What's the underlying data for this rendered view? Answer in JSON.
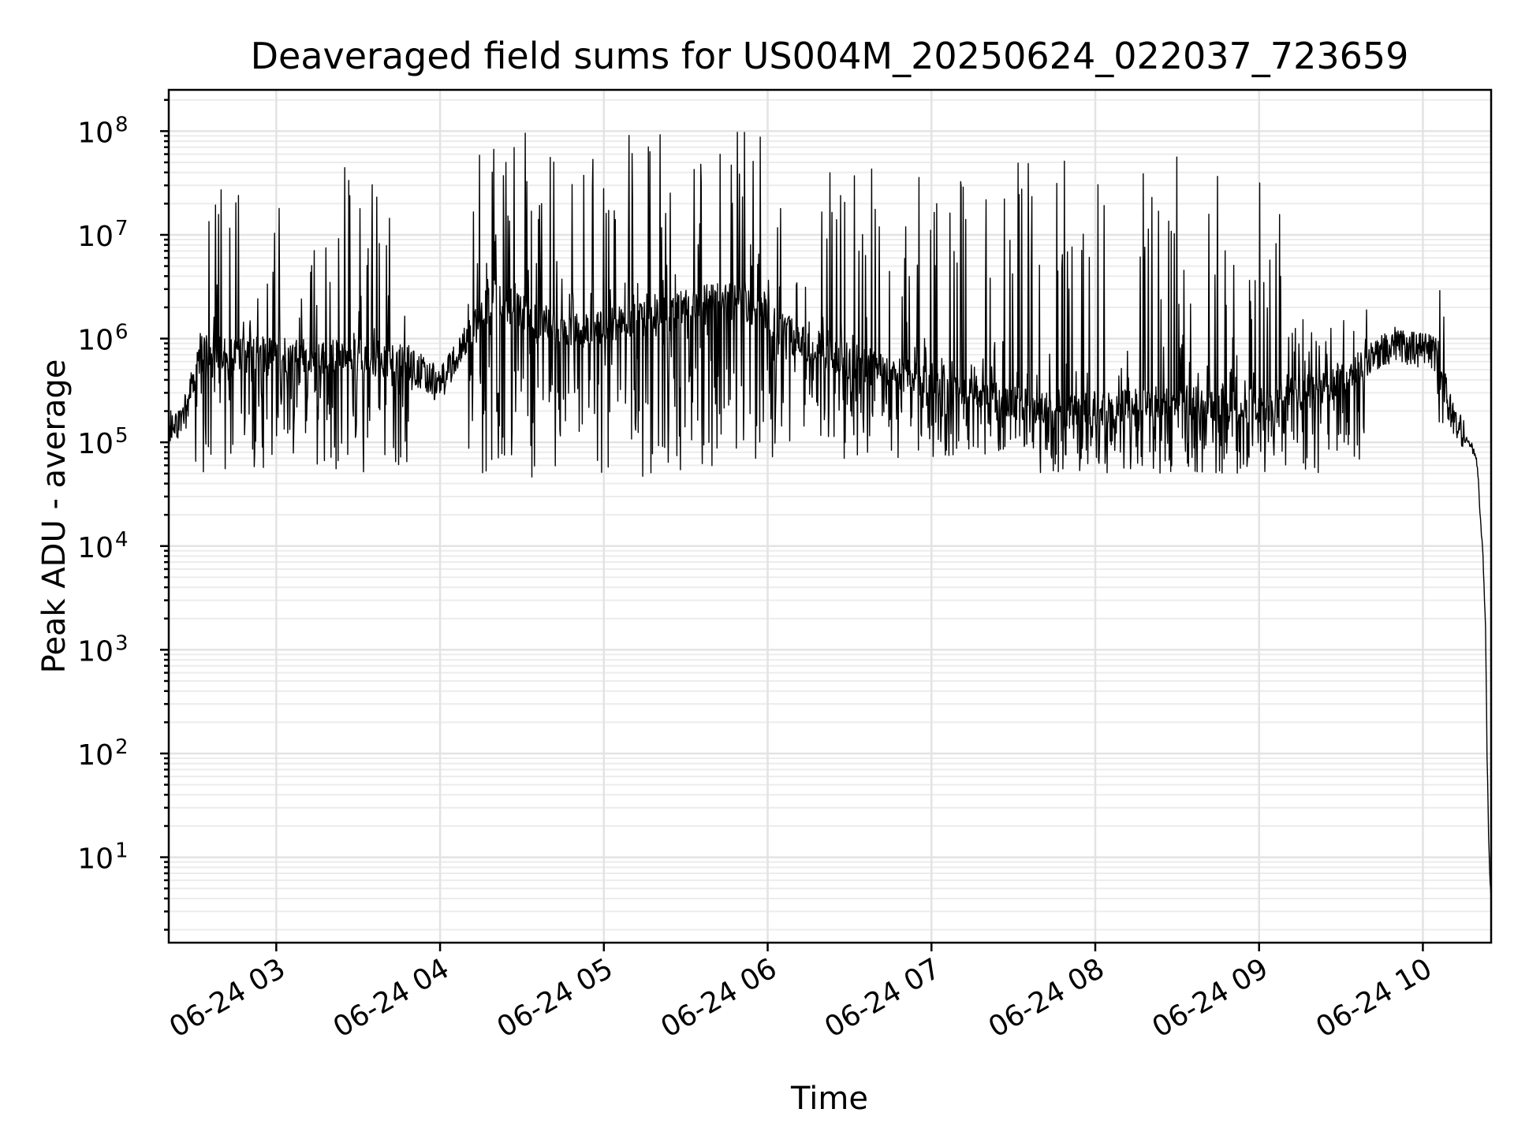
{
  "chart_data": {
    "type": "line",
    "title": "Deaveraged field sums for US004M_20250624_022037_723659",
    "xlabel": "Time",
    "ylabel": "Peak ADU - average",
    "yscale": "log",
    "ylim": [
      1.5,
      250000000
    ],
    "xlim": [
      "2025-06-24 02:20:37",
      "2025-06-24 10:25:00"
    ],
    "grid": true,
    "x_ticks": [
      {
        "value": "2025-06-24 03:00",
        "label": "06-24 03"
      },
      {
        "value": "2025-06-24 04:00",
        "label": "06-24 04"
      },
      {
        "value": "2025-06-24 05:00",
        "label": "06-24 05"
      },
      {
        "value": "2025-06-24 06:00",
        "label": "06-24 06"
      },
      {
        "value": "2025-06-24 07:00",
        "label": "06-24 07"
      },
      {
        "value": "2025-06-24 08:00",
        "label": "06-24 08"
      },
      {
        "value": "2025-06-24 09:00",
        "label": "06-24 09"
      },
      {
        "value": "2025-06-24 10:00",
        "label": "06-24 10"
      }
    ],
    "y_ticks": [
      {
        "value": 10,
        "base": "10",
        "exp": "1"
      },
      {
        "value": 100,
        "base": "10",
        "exp": "2"
      },
      {
        "value": 1000,
        "base": "10",
        "exp": "3"
      },
      {
        "value": 10000,
        "base": "10",
        "exp": "4"
      },
      {
        "value": 100000,
        "base": "10",
        "exp": "5"
      },
      {
        "value": 1000000,
        "base": "10",
        "exp": "6"
      },
      {
        "value": 10000000,
        "base": "10",
        "exp": "7"
      },
      {
        "value": 100000000,
        "base": "10",
        "exp": "8"
      }
    ],
    "series": [
      {
        "color": "#000000",
        "baseline": {
          "x": [
            "2025-06-24 02:20:37",
            "2025-06-24 02:27",
            "2025-06-24 02:32",
            "2025-06-24 02:37",
            "2025-06-24 02:50",
            "2025-06-24 03:15",
            "2025-06-24 03:35",
            "2025-06-24 03:48",
            "2025-06-24 04:00",
            "2025-06-24 04:10",
            "2025-06-24 04:20",
            "2025-06-24 04:35",
            "2025-06-24 04:55",
            "2025-06-24 05:20",
            "2025-06-24 05:40",
            "2025-06-24 05:55",
            "2025-06-24 06:10",
            "2025-06-24 06:30",
            "2025-06-24 06:50",
            "2025-06-24 07:10",
            "2025-06-24 07:40",
            "2025-06-24 08:00",
            "2025-06-24 08:30",
            "2025-06-24 09:00",
            "2025-06-24 09:30",
            "2025-06-24 09:50",
            "2025-06-24 10:05",
            "2025-06-24 10:10",
            "2025-06-24 10:15",
            "2025-06-24 10:18",
            "2025-06-24 10:20",
            "2025-06-24 10:21",
            "2025-06-24 10:22",
            "2025-06-24 10:23",
            "2025-06-24 10:23:30",
            "2025-06-24 10:24",
            "2025-06-24 10:24:30",
            "2025-06-24 10:25"
          ],
          "y": [
            130000,
            200000,
            700000,
            800000,
            700000,
            700000,
            650000,
            600000,
            350000,
            1000000,
            2500000,
            1500000,
            1200000,
            1600000,
            2500000,
            2000000,
            1000000,
            600000,
            450000,
            350000,
            200000,
            200000,
            250000,
            220000,
            400000,
            900000,
            700000,
            200000,
            110000,
            90000,
            60000,
            20000,
            8000,
            1500,
            100,
            20,
            6,
            4
          ]
        },
        "spike_bands": [
          {
            "from": "2025-06-24 02:30",
            "to": "2025-06-24 03:50",
            "low": 50000,
            "high": 45000000
          },
          {
            "from": "2025-06-24 04:10",
            "to": "2025-06-24 06:00",
            "low": 45000,
            "high": 105000000
          },
          {
            "from": "2025-06-24 06:00",
            "to": "2025-06-24 07:40",
            "low": 70000,
            "high": 55000000
          },
          {
            "from": "2025-06-24 07:40",
            "to": "2025-06-24 09:10",
            "low": 50000,
            "high": 60000000
          },
          {
            "from": "2025-06-24 09:10",
            "to": "2025-06-24 09:40",
            "low": 50000,
            "high": 1600000
          },
          {
            "from": "2025-06-24 10:05",
            "to": "2025-06-24 10:08",
            "low": 200000,
            "high": 3000000
          }
        ]
      }
    ]
  }
}
